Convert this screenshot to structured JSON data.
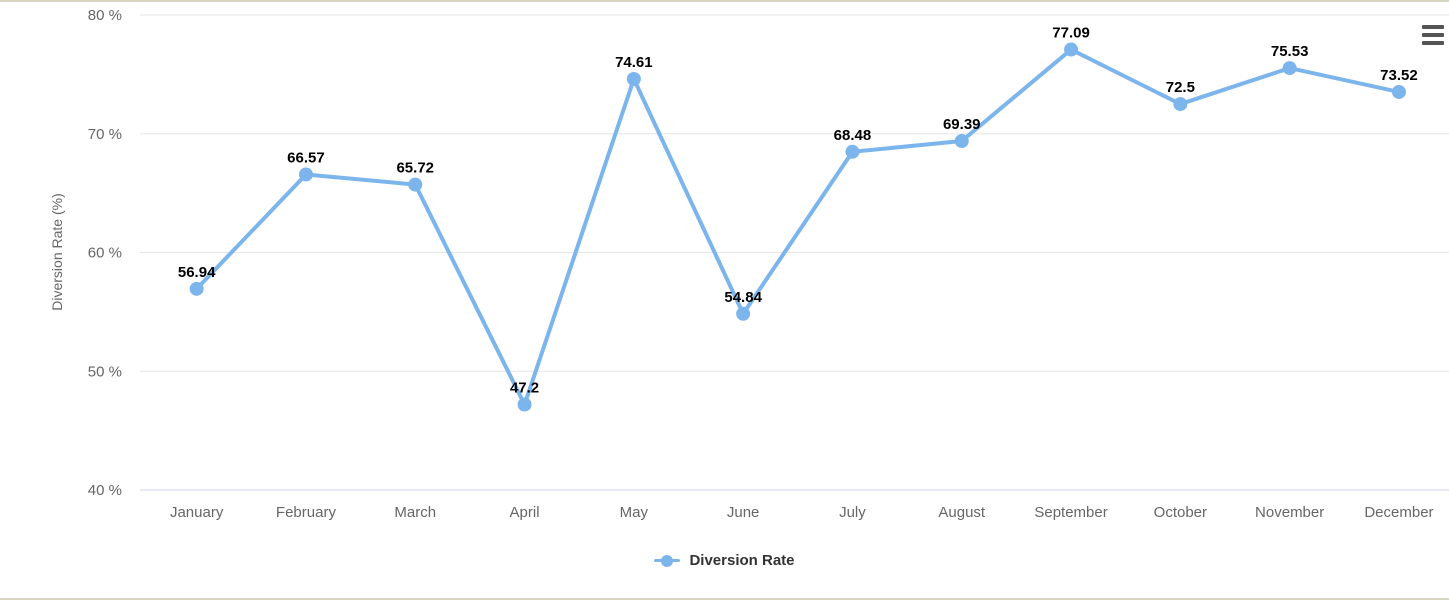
{
  "chart": {
    "y_axis_title": "Diversion Rate (%)",
    "legend_label": "Diversion Rate",
    "context_menu_icon": "hamburger-menu-icon"
  },
  "chart_data": {
    "type": "line",
    "title": "",
    "xlabel": "",
    "ylabel": "Diversion Rate (%)",
    "categories": [
      "January",
      "February",
      "March",
      "April",
      "May",
      "June",
      "July",
      "August",
      "September",
      "October",
      "November",
      "December"
    ],
    "series": [
      {
        "name": "Diversion Rate",
        "values": [
          56.94,
          66.57,
          65.72,
          47.2,
          74.61,
          54.84,
          68.48,
          69.39,
          77.09,
          72.5,
          75.53,
          73.52
        ],
        "data_labels": [
          "56.94",
          "66.57",
          "65.72",
          "47.2",
          "74.61",
          "54.84",
          "68.48",
          "69.39",
          "77.09",
          "72.5",
          "75.53",
          "73.52"
        ]
      }
    ],
    "ylim": [
      40,
      80
    ],
    "y_ticks": [
      {
        "value": 40,
        "label": "40 %"
      },
      {
        "value": 50,
        "label": "50 %"
      },
      {
        "value": 60,
        "label": "60 %"
      },
      {
        "value": 70,
        "label": "70 %"
      },
      {
        "value": 80,
        "label": "80 %"
      }
    ],
    "grid": true,
    "legend_position": "bottom-center",
    "colors": {
      "line": "#7cb5ec",
      "marker": "#7cb5ec",
      "grid_line": "#e6e6e6",
      "axis_line": "#ccd6eb",
      "data_label": "#000000",
      "tick_label": "#666666",
      "axis_title": "#666666",
      "legend_text": "#333333",
      "menu_icon": "#545454",
      "page_border": "#d9d5c3"
    }
  }
}
